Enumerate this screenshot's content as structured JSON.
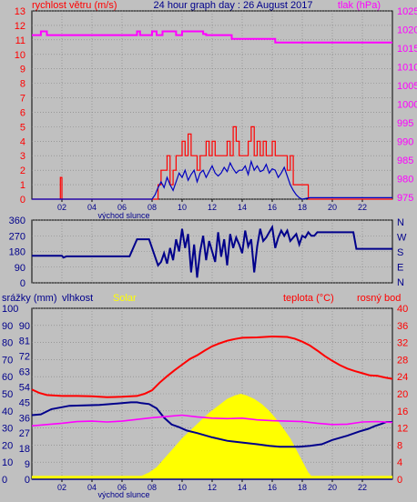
{
  "top_panel": {
    "title": "24 hour graph day : 26 August 2017",
    "left_label": "rychlost větru (m/s)",
    "right_label": "tlak (hPa)",
    "sunrise_label": "východ slunce"
  },
  "mid_panel": {
    "compass": [
      "N",
      "W",
      "S",
      "E",
      "N"
    ]
  },
  "bottom_panel": {
    "labels": {
      "rain": "srážky (mm)",
      "humidity": "vlhkost",
      "solar": "Solar",
      "temperature": "teplota (°C)",
      "dewpoint": "rosný bod"
    },
    "sunrise_label": "východ slunce"
  },
  "chart_data": [
    {
      "type": "line",
      "name": "wind-pressure",
      "x_ticks": [
        "02",
        "04",
        "06",
        "08",
        "10",
        "12",
        "14",
        "16",
        "18",
        "20",
        "22"
      ],
      "xlim": [
        0,
        24
      ],
      "ylim": [
        0,
        13
      ],
      "yticks_left": [
        0,
        1,
        2,
        3,
        4,
        5,
        6,
        7,
        8,
        9,
        10,
        11,
        12,
        13
      ],
      "y2lim": [
        974.5,
        1025
      ],
      "yticks_right": [
        975,
        980,
        985,
        990,
        995,
        1000,
        1005,
        1010,
        1015,
        1020,
        1025
      ],
      "colors": {
        "gust": "#ff0000",
        "wind": "#0000c0",
        "pressure": "#ff00ff",
        "left_axis": "#ff0000",
        "right_axis": "#ff00ff"
      },
      "series": [
        {
          "key": "gust",
          "axis": "left",
          "step": true,
          "x": [
            0,
            1.9,
            1.9,
            2.0,
            2.0,
            8.2,
            8.4,
            8.6,
            8.8,
            9.0,
            9.2,
            9.4,
            9.6,
            9.8,
            10.0,
            10.2,
            10.4,
            10.6,
            10.8,
            11.0,
            11.2,
            11.4,
            11.6,
            11.8,
            12.0,
            12.2,
            12.4,
            12.6,
            12.8,
            13.0,
            13.2,
            13.4,
            13.6,
            13.8,
            14.0,
            14.2,
            14.4,
            14.6,
            14.8,
            15.0,
            15.2,
            15.4,
            15.6,
            15.8,
            16.0,
            16.2,
            16.4,
            16.6,
            16.8,
            17.0,
            17.2,
            17.4,
            17.6,
            17.8,
            18.0,
            18.2,
            18.4,
            18.6,
            24
          ],
          "y": [
            0,
            0,
            1.5,
            1.5,
            0,
            0,
            1,
            2,
            2,
            3,
            1,
            2,
            3,
            3,
            4,
            3,
            4.5,
            3,
            3,
            2,
            3,
            3,
            4,
            3,
            4,
            3,
            3,
            3,
            3,
            4,
            3,
            5,
            4,
            3,
            3,
            3,
            4,
            5,
            3,
            4,
            3,
            4,
            3,
            3,
            4,
            3,
            3,
            3,
            3,
            2,
            3,
            1,
            1,
            1,
            1,
            1,
            0,
            0,
            0
          ]
        },
        {
          "key": "wind",
          "axis": "left",
          "step": false,
          "x": [
            0,
            8.0,
            8.2,
            8.4,
            8.6,
            8.8,
            9.0,
            9.2,
            9.4,
            9.6,
            9.8,
            10.0,
            10.2,
            10.4,
            10.6,
            10.8,
            11.0,
            11.2,
            11.4,
            11.6,
            11.8,
            12.0,
            12.2,
            12.4,
            12.6,
            12.8,
            13.0,
            13.2,
            13.4,
            13.6,
            13.8,
            14.0,
            14.2,
            14.4,
            14.6,
            14.8,
            15.0,
            15.2,
            15.4,
            15.6,
            15.8,
            16.0,
            16.2,
            16.4,
            16.6,
            16.8,
            17.0,
            17.2,
            17.4,
            17.6,
            17.8,
            18.0,
            18.5,
            24
          ],
          "y": [
            0,
            0,
            0.3,
            0.8,
            1.2,
            0.8,
            1.5,
            1.0,
            0.6,
            1.2,
            1.8,
            1.5,
            2.0,
            1.3,
            1.7,
            2.0,
            1.2,
            1.8,
            2.0,
            1.5,
            1.9,
            2.3,
            1.8,
            1.6,
            1.8,
            2.2,
            1.9,
            2.5,
            2.1,
            1.8,
            2.0,
            2.0,
            2.3,
            1.7,
            2.6,
            2.0,
            2.3,
            1.9,
            2.0,
            2.4,
            1.8,
            2.1,
            2.0,
            1.5,
            1.8,
            2.2,
            1.6,
            1.0,
            0.6,
            0.3,
            0.1,
            0.0,
            0.1,
            0.1
          ]
        },
        {
          "key": "pressure",
          "axis": "right",
          "step": true,
          "x": [
            0,
            0.6,
            0.6,
            1.0,
            1.0,
            7.0,
            7.0,
            7.2,
            7.2,
            8.0,
            8.0,
            8.3,
            8.3,
            8.7,
            8.7,
            9.6,
            9.6,
            10.0,
            10.0,
            11.4,
            11.4,
            11.6,
            11.6,
            13.3,
            13.3,
            16.2,
            16.2,
            24
          ],
          "y": [
            1018.5,
            1018.5,
            1019.5,
            1019.5,
            1018.5,
            1018.5,
            1019.5,
            1019.5,
            1018.5,
            1018.5,
            1019.5,
            1019.5,
            1018.5,
            1018.5,
            1019.5,
            1019.5,
            1018.5,
            1018.5,
            1019.5,
            1019.5,
            1018.8,
            1018.8,
            1018.5,
            1018.5,
            1017.5,
            1017.5,
            1016.5,
            1016.5
          ]
        }
      ]
    },
    {
      "type": "line",
      "name": "wind-direction",
      "xlim": [
        0,
        24
      ],
      "ylim": [
        0,
        360
      ],
      "yticks_left": [
        0,
        90,
        180,
        270,
        360
      ],
      "colors": {
        "direction": "#00008b"
      },
      "series": [
        {
          "key": "direction",
          "x": [
            0,
            2.0,
            2.1,
            2.3,
            6.0,
            6.5,
            7.0,
            7.2,
            7.4,
            7.6,
            7.8,
            8.0,
            8.2,
            8.4,
            8.6,
            8.8,
            9.0,
            9.2,
            9.4,
            9.6,
            9.8,
            10.0,
            10.2,
            10.4,
            10.6,
            10.8,
            11.0,
            11.2,
            11.4,
            11.6,
            11.8,
            12.0,
            12.2,
            12.4,
            12.6,
            12.8,
            13.0,
            13.2,
            13.4,
            13.6,
            13.8,
            14.0,
            14.2,
            14.4,
            14.6,
            14.8,
            15.0,
            15.2,
            15.4,
            15.6,
            15.8,
            16.0,
            16.2,
            16.4,
            16.6,
            16.8,
            17.0,
            17.2,
            17.4,
            17.6,
            17.8,
            18.0,
            18.2,
            18.4,
            18.6,
            18.8,
            19.0,
            21.4,
            21.6,
            24
          ],
          "y": [
            155,
            155,
            145,
            152,
            152,
            152,
            250,
            250,
            250,
            250,
            250,
            200,
            150,
            100,
            120,
            170,
            110,
            200,
            130,
            250,
            180,
            310,
            200,
            280,
            60,
            220,
            30,
            180,
            270,
            130,
            240,
            180,
            120,
            290,
            150,
            250,
            100,
            280,
            200,
            260,
            220,
            170,
            300,
            210,
            250,
            60,
            210,
            310,
            240,
            260,
            290,
            320,
            200,
            260,
            300,
            270,
            300,
            240,
            260,
            280,
            220,
            270,
            260,
            290,
            270,
            270,
            290,
            290,
            195,
            195
          ]
        }
      ]
    },
    {
      "type": "area",
      "name": "weather",
      "xlim": [
        0,
        24
      ],
      "ylim_rain": [
        0,
        100
      ],
      "yticks_rain": [
        0,
        10,
        20,
        30,
        40,
        50,
        60,
        70,
        80,
        90,
        100
      ],
      "ylim_humidity": [
        0,
        100
      ],
      "yticks_humidity": [
        0,
        9,
        18,
        27,
        36,
        45,
        54,
        63,
        72,
        81,
        90
      ],
      "y2lim": [
        0,
        40
      ],
      "yticks_right": [
        0,
        4,
        8,
        12,
        16,
        20,
        24,
        28,
        32,
        36,
        40
      ],
      "colors": {
        "humidity": "#00008b",
        "solar": "#ffff00",
        "temperature": "#ff0000",
        "dewpoint": "#ff00ff",
        "rain": "#00008b",
        "left_axis": "#00008b",
        "right_axis": "#ff0000"
      },
      "series": [
        {
          "key": "solar",
          "x": [
            0,
            7.3,
            7.8,
            8.3,
            8.8,
            9.4,
            10.0,
            10.6,
            11.2,
            11.8,
            12.4,
            13.0,
            13.5,
            13.9,
            14.3,
            14.8,
            15.3,
            15.8,
            16.3,
            16.8,
            17.2,
            17.5,
            17.8,
            18.1,
            18.4,
            18.6,
            24
          ],
          "y": [
            2,
            2,
            4,
            7,
            12,
            18,
            24,
            29,
            34,
            39,
            43,
            47,
            49,
            50,
            49,
            47,
            44,
            40,
            35,
            29,
            24,
            19,
            14,
            9,
            4,
            2,
            2
          ]
        },
        {
          "key": "humidity",
          "x": [
            0,
            0.6,
            1.3,
            2.5,
            4.5,
            6.0,
            6.6,
            7.0,
            7.3,
            7.8,
            8.3,
            8.8,
            9.3,
            9.8,
            10.3,
            11.0,
            12.0,
            13.0,
            14.0,
            15.0,
            15.8,
            16.5,
            17.0,
            17.8,
            18.5,
            19.3,
            20.0,
            21.0,
            21.8,
            22.4,
            22.8,
            23.3,
            23.6,
            24
          ],
          "y": [
            37.5,
            38.0,
            41.0,
            43.0,
            43.5,
            44.5,
            45.0,
            45.0,
            44.5,
            44.0,
            41.5,
            36.0,
            32.0,
            30.5,
            28.5,
            27.0,
            24.5,
            22.5,
            21.5,
            20.5,
            19.5,
            19.0,
            19.0,
            19.0,
            19.5,
            20.5,
            23.0,
            25.5,
            28.0,
            29.5,
            31.0,
            32.5,
            33.5,
            33.5
          ]
        },
        {
          "key": "temperature",
          "axis": "right",
          "x": [
            0,
            0.5,
            1.0,
            2.0,
            3.0,
            4.0,
            5.0,
            6.0,
            7.0,
            7.5,
            8.0,
            8.5,
            9.0,
            9.5,
            10.0,
            10.5,
            11.0,
            11.5,
            12.0,
            12.5,
            13.0,
            13.5,
            14.0,
            15.0,
            16.0,
            17.0,
            17.5,
            18.0,
            18.5,
            19.0,
            19.5,
            20.0,
            20.5,
            21.0,
            21.5,
            22.0,
            22.5,
            23.0,
            23.5,
            24
          ],
          "y": [
            21.0,
            20.2,
            19.7,
            19.5,
            19.5,
            19.4,
            19.2,
            19.3,
            19.5,
            20.0,
            20.8,
            22.6,
            24.1,
            25.5,
            26.8,
            28.1,
            29.0,
            30.1,
            31.1,
            31.8,
            32.4,
            32.8,
            33.1,
            33.2,
            33.4,
            33.3,
            32.9,
            32.2,
            31.3,
            30.1,
            28.8,
            27.7,
            26.7,
            25.9,
            25.3,
            24.8,
            24.3,
            24.2,
            23.8,
            23.5
          ]
        },
        {
          "key": "dewpoint",
          "axis": "right",
          "x": [
            0,
            1.0,
            2.0,
            3.0,
            4.0,
            5.0,
            6.0,
            7.0,
            8.0,
            9.0,
            10.0,
            11.0,
            12.0,
            13.0,
            14.0,
            15.0,
            16.0,
            17.0,
            18.0,
            19.0,
            20.0,
            21.0,
            22.0,
            23.0,
            24
          ],
          "y": [
            12.5,
            12.8,
            13.1,
            13.5,
            13.6,
            13.4,
            13.6,
            14.0,
            14.4,
            14.7,
            15.0,
            14.6,
            14.3,
            14.2,
            14.3,
            13.9,
            13.7,
            13.6,
            13.5,
            13.1,
            12.8,
            12.9,
            13.4,
            13.5,
            13.3
          ]
        },
        {
          "key": "rain",
          "x": [
            0,
            24
          ],
          "y": [
            0,
            0
          ]
        }
      ]
    }
  ]
}
